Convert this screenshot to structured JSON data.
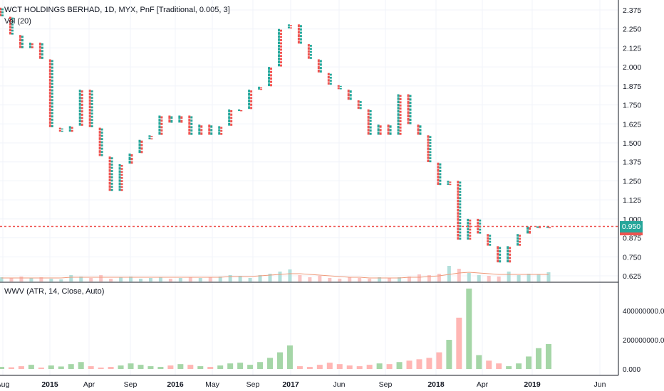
{
  "header": {
    "title": "WCT HOLDINGS BERHAD, 1D, MYX, PnF [Traditional, 0.005, 3]",
    "vol_label": "Vol (20)",
    "wwv_label": "WWV (ATR, 14, Close, Auto)"
  },
  "last_price": {
    "label": "0.950",
    "value": 0.95
  },
  "colors": {
    "up": "#26a69a",
    "down": "#ef5350",
    "grid": "#f0f3fa",
    "axis_text": "#131722",
    "last_price": "#ef5350",
    "last_price_tag": "#26a69a",
    "vol_ma": "#ef9a7a",
    "vol_up": "#b2dfdb",
    "vol_down": "#fbc4c3",
    "wwv_up": "#a5d6a7",
    "wwv_down": "#ffb6b4"
  },
  "chart_data": [
    {
      "type": "bar",
      "subtype": "point-and-figure",
      "title": "WCT HOLDINGS BERHAD, 1D, MYX, PnF [Traditional, 0.005, 3]",
      "xlabel": "",
      "ylabel": "",
      "x_ticks": [
        "Aug",
        "2015",
        "Apr",
        "Sep",
        "2016",
        "May",
        "Sep",
        "2017",
        "Jun",
        "Sep",
        "2018",
        "Apr",
        "2019",
        "Jun"
      ],
      "y_ticks": [
        0.625,
        0.75,
        0.875,
        1.0,
        1.125,
        1.25,
        1.375,
        1.5,
        1.625,
        1.75,
        1.875,
        2.0,
        2.125,
        2.25,
        2.375
      ],
      "ylim": [
        0.6,
        2.4
      ],
      "series": [
        {
          "dates": [
            "2014-08",
            "2014-09",
            "2014-10",
            "2014-11",
            "2014-12",
            "2015-01",
            "2015-02",
            "2015-03",
            "2015-04",
            "2015-05",
            "2015-06",
            "2015-07",
            "2015-08",
            "2015-09",
            "2015-10",
            "2015-11",
            "2015-12",
            "2016-01",
            "2016-02",
            "2016-03",
            "2016-04",
            "2016-05",
            "2016-06",
            "2016-07",
            "2016-08",
            "2016-09",
            "2016-10",
            "2016-11",
            "2016-12",
            "2017-01",
            "2017-02",
            "2017-03",
            "2017-04",
            "2017-05",
            "2017-06",
            "2017-07",
            "2017-08",
            "2017-09",
            "2017-10",
            "2017-11",
            "2017-12",
            "2018-01",
            "2018-02",
            "2018-03",
            "2018-04",
            "2018-05",
            "2018-06",
            "2018-07",
            "2018-08",
            "2018-09",
            "2018-10",
            "2018-11",
            "2018-12",
            "2019-01",
            "2019-02",
            "2019-03"
          ],
          "values": [
            2.33,
            2.21,
            2.12,
            2.16,
            2.05,
            1.6,
            1.57,
            1.61,
            1.85,
            1.6,
            1.41,
            1.18,
            1.36,
            1.43,
            1.52,
            1.55,
            1.68,
            1.63,
            1.68,
            1.55,
            1.62,
            1.55,
            1.61,
            1.72,
            1.72,
            1.85,
            1.87,
            2.0,
            2.25,
            2.28,
            2.15,
            2.05,
            1.96,
            1.88,
            1.85,
            1.78,
            1.72,
            1.55,
            1.62,
            1.55,
            1.82,
            1.62,
            1.55,
            1.37,
            1.22,
            1.25,
            0.86,
            1.0,
            0.9,
            0.82,
            0.71,
            0.82,
            0.9,
            0.95,
            0.95,
            0.95
          ]
        }
      ]
    },
    {
      "type": "bar",
      "title": "Vol (20)",
      "values": [
        6,
        5,
        7,
        5,
        6,
        4,
        3,
        9,
        7,
        5,
        9,
        4,
        6,
        7,
        4,
        5,
        6,
        4,
        5,
        6,
        5,
        6,
        7,
        9,
        8,
        5,
        9,
        11,
        14,
        17,
        9,
        6,
        8,
        5,
        4,
        6,
        5,
        4,
        6,
        5,
        6,
        7,
        10,
        9,
        11,
        22,
        18,
        12,
        9,
        8,
        7,
        14,
        9,
        11,
        10,
        13
      ],
      "ma": [
        5,
        5,
        5,
        5,
        5,
        5,
        5,
        6,
        6,
        6,
        6,
        6,
        6,
        6,
        6,
        6,
        6,
        6,
        6,
        6,
        6,
        6,
        6,
        7,
        7,
        7,
        8,
        9,
        10,
        11,
        11,
        10,
        9,
        8,
        7,
        6,
        6,
        5,
        5,
        5,
        5,
        6,
        6,
        7,
        8,
        10,
        12,
        13,
        12,
        11,
        10,
        10,
        10,
        10,
        10,
        10
      ]
    },
    {
      "type": "bar",
      "title": "WWV (ATR, 14, Close, Auto)",
      "y_ticks": [
        "0.000",
        "200000000.000",
        "400000000.000"
      ],
      "values": [
        15,
        12,
        20,
        30,
        10,
        25,
        18,
        35,
        50,
        20,
        10,
        15,
        25,
        40,
        30,
        20,
        15,
        25,
        35,
        30,
        20,
        15,
        25,
        40,
        45,
        30,
        50,
        80,
        120,
        170,
        20,
        15,
        30,
        45,
        35,
        25,
        20,
        30,
        40,
        35,
        50,
        60,
        70,
        80,
        120,
        210,
        370,
        580,
        100,
        60,
        40,
        20,
        40,
        90,
        150,
        180
      ],
      "up": [
        1,
        0,
        0,
        1,
        0,
        1,
        1,
        1,
        1,
        0,
        0,
        0,
        1,
        1,
        1,
        1,
        1,
        0,
        1,
        0,
        1,
        0,
        1,
        1,
        1,
        1,
        1,
        1,
        1,
        1,
        0,
        0,
        0,
        0,
        0,
        0,
        0,
        0,
        1,
        0,
        1,
        0,
        0,
        0,
        0,
        1,
        0,
        1,
        1,
        0,
        0,
        1,
        1,
        1,
        1,
        1
      ],
      "ylim": [
        0,
        600
      ]
    }
  ]
}
